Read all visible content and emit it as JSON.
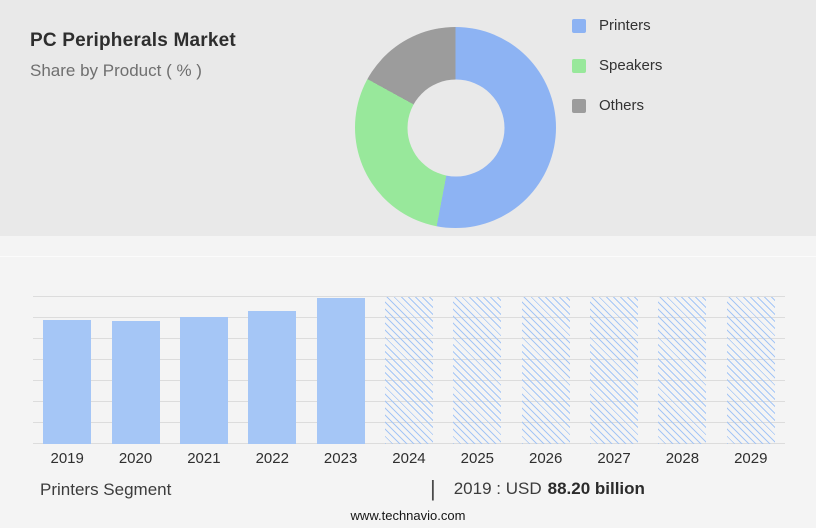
{
  "header": {
    "title": "PC Peripherals Market",
    "subtitle": "Share by Product ( % )"
  },
  "chart_data": [
    {
      "type": "pie",
      "donut": true,
      "labels": [
        "Printers",
        "Speakers",
        "Others"
      ],
      "values": [
        53,
        30,
        17
      ],
      "colors": [
        "#8db3f3",
        "#98e89b",
        "#9c9c9c"
      ],
      "legend_position": "right"
    },
    {
      "type": "bar",
      "categories": [
        "2019",
        "2020",
        "2021",
        "2022",
        "2023",
        "2024",
        "2025",
        "2026",
        "2027",
        "2028",
        "2029"
      ],
      "series": [
        {
          "name": "historic",
          "pattern": "solid",
          "color": "#a5c6f6",
          "values": [
            88.2,
            87.3,
            90.1,
            94.2,
            103.5,
            null,
            null,
            null,
            null,
            null,
            null
          ]
        },
        {
          "name": "forecast",
          "pattern": "hatched",
          "color": "#a5c6f6",
          "values": [
            null,
            null,
            null,
            null,
            null,
            104.5,
            104.5,
            104.5,
            104.5,
            104.5,
            104.5
          ]
        }
      ],
      "ylim": [
        0,
        105
      ],
      "grid": true
    }
  ],
  "footer": {
    "segment_label": "Printers Segment",
    "separator": "|",
    "value_prefix": "2019 : USD",
    "value_bold": "88.20 billion",
    "website": "www.technavio.com"
  },
  "colors": {
    "top_bg": "#e9e9e9",
    "bottom_bg": "#f4f4f4",
    "gridline": "#dcdcdc"
  }
}
